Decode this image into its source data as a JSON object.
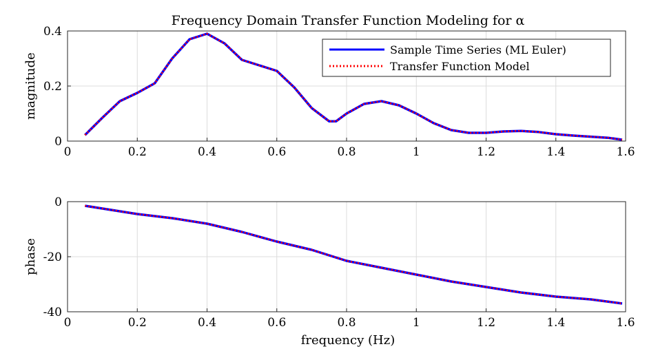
{
  "chart_data": [
    {
      "type": "line",
      "title": "Frequency Domain Transfer Function Modeling for α",
      "xlabel": "",
      "ylabel": "magnitude",
      "xlim": [
        0,
        1.6
      ],
      "ylim": [
        0,
        0.4
      ],
      "xticks": [
        "0",
        "0.2",
        "0.4",
        "0.6",
        "0.8",
        "1",
        "1.2",
        "1.4",
        "1.6"
      ],
      "yticks": [
        "0",
        "0.2",
        "0.4"
      ],
      "grid": true,
      "legend_position": "top-right",
      "series": [
        {
          "name": "Sample Time Series (ML Euler)",
          "color": "#0000ff",
          "style": "solid",
          "x": [
            0.05,
            0.1,
            0.15,
            0.2,
            0.25,
            0.3,
            0.35,
            0.4,
            0.45,
            0.5,
            0.55,
            0.6,
            0.65,
            0.7,
            0.75,
            0.77,
            0.8,
            0.85,
            0.9,
            0.95,
            1.0,
            1.05,
            1.1,
            1.15,
            1.2,
            1.25,
            1.3,
            1.35,
            1.4,
            1.45,
            1.5,
            1.55,
            1.59
          ],
          "y": [
            0.022,
            0.085,
            0.145,
            0.175,
            0.21,
            0.3,
            0.37,
            0.39,
            0.355,
            0.295,
            0.275,
            0.255,
            0.195,
            0.12,
            0.072,
            0.072,
            0.1,
            0.135,
            0.145,
            0.13,
            0.1,
            0.065,
            0.04,
            0.03,
            0.03,
            0.035,
            0.037,
            0.033,
            0.025,
            0.02,
            0.016,
            0.012,
            0.005
          ]
        },
        {
          "name": "Transfer Function Model",
          "color": "#ff0000",
          "style": "dotted",
          "x": [
            0.05,
            0.1,
            0.15,
            0.2,
            0.25,
            0.3,
            0.35,
            0.4,
            0.45,
            0.5,
            0.55,
            0.6,
            0.65,
            0.7,
            0.75,
            0.77,
            0.8,
            0.85,
            0.9,
            0.95,
            1.0,
            1.05,
            1.1,
            1.15,
            1.2,
            1.25,
            1.3,
            1.35,
            1.4,
            1.45,
            1.5,
            1.55,
            1.59
          ],
          "y": [
            0.022,
            0.085,
            0.145,
            0.175,
            0.21,
            0.3,
            0.37,
            0.39,
            0.355,
            0.295,
            0.275,
            0.255,
            0.195,
            0.12,
            0.072,
            0.072,
            0.1,
            0.135,
            0.145,
            0.13,
            0.1,
            0.065,
            0.04,
            0.03,
            0.03,
            0.035,
            0.037,
            0.033,
            0.025,
            0.02,
            0.016,
            0.012,
            0.005
          ]
        }
      ]
    },
    {
      "type": "line",
      "title": "",
      "xlabel": "frequency (Hz)",
      "ylabel": "phase",
      "xlim": [
        0,
        1.6
      ],
      "ylim": [
        -40,
        0
      ],
      "xticks": [
        "0",
        "0.2",
        "0.4",
        "0.6",
        "0.8",
        "1",
        "1.2",
        "1.4",
        "1.6"
      ],
      "yticks": [
        "0",
        "-20",
        "-40"
      ],
      "grid": true,
      "series": [
        {
          "name": "",
          "color": "#0000ff",
          "style": "solid",
          "x": [
            0.05,
            0.1,
            0.2,
            0.3,
            0.4,
            0.5,
            0.6,
            0.7,
            0.75,
            0.8,
            0.9,
            1.0,
            1.1,
            1.2,
            1.3,
            1.4,
            1.5,
            1.59
          ],
          "y": [
            -1.5,
            -2.5,
            -4.5,
            -6.0,
            -8.0,
            -11.0,
            -14.5,
            -17.5,
            -19.5,
            -21.5,
            -24.0,
            -26.5,
            -29.0,
            -31.0,
            -33.0,
            -34.5,
            -35.5,
            -37.0
          ]
        },
        {
          "name": "",
          "color": "#ff0000",
          "style": "dotted",
          "x": [
            0.05,
            0.1,
            0.2,
            0.3,
            0.4,
            0.5,
            0.6,
            0.7,
            0.75,
            0.8,
            0.9,
            1.0,
            1.1,
            1.2,
            1.3,
            1.4,
            1.5,
            1.59
          ],
          "y": [
            -1.5,
            -2.5,
            -4.5,
            -6.0,
            -8.0,
            -11.0,
            -14.5,
            -17.5,
            -19.5,
            -21.5,
            -24.0,
            -26.5,
            -29.0,
            -31.0,
            -33.0,
            -34.5,
            -35.5,
            -37.0
          ]
        }
      ]
    }
  ]
}
